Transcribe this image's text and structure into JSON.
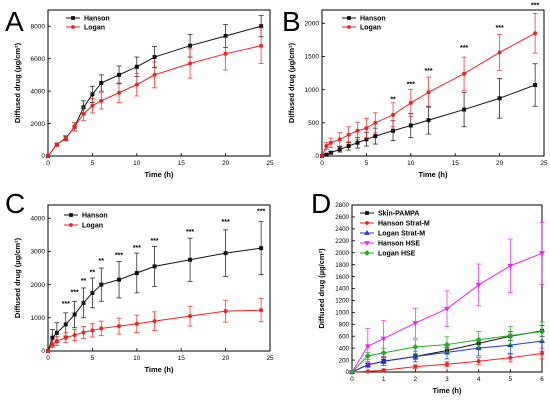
{
  "panel_labels": [
    "A",
    "B",
    "C",
    "D"
  ],
  "colors": {
    "hanson": "#111111",
    "logan": "#ee2222"
  },
  "chart_data": [
    {
      "panel": "A",
      "type": "line",
      "xlabel": "Time (h)",
      "ylabel": "Diffused drug (µg/cm²)",
      "xlim": [
        0,
        25
      ],
      "ylim": [
        0,
        9000
      ],
      "xticks": [
        0,
        5,
        10,
        15,
        20,
        25
      ],
      "yticks": [
        0,
        2000,
        4000,
        6000,
        8000
      ],
      "legend": "top-left",
      "series": [
        {
          "name": "Hanson",
          "color": "#111111",
          "marker": "square",
          "x": [
            0,
            1,
            2,
            3,
            4,
            5,
            6,
            8,
            10,
            12,
            16,
            20,
            24
          ],
          "y": [
            0,
            700,
            1100,
            1800,
            3000,
            3800,
            4500,
            5000,
            5500,
            6100,
            6800,
            7400,
            8000
          ],
          "err": [
            0,
            100,
            150,
            250,
            400,
            500,
            500,
            550,
            600,
            650,
            700,
            700,
            650
          ]
        },
        {
          "name": "Logan",
          "color": "#ee2222",
          "marker": "circle",
          "x": [
            0,
            1,
            2,
            3,
            4,
            5,
            6,
            8,
            10,
            12,
            16,
            20,
            24
          ],
          "y": [
            0,
            700,
            1100,
            1800,
            2600,
            3100,
            3400,
            3900,
            4400,
            5000,
            5700,
            6300,
            6800
          ],
          "err": [
            0,
            100,
            150,
            250,
            400,
            450,
            500,
            600,
            700,
            800,
            900,
            1000,
            1100
          ]
        }
      ]
    },
    {
      "panel": "B",
      "type": "line",
      "xlabel": "Time (h)",
      "ylabel": "Diffused drug (µg/cm²)",
      "xlim": [
        0,
        25
      ],
      "ylim": [
        0,
        2200
      ],
      "xticks": [
        0,
        5,
        10,
        15,
        20,
        25
      ],
      "yticks": [
        0,
        500,
        1000,
        1500,
        2000
      ],
      "legend": "top-left",
      "annotations": [
        {
          "x": 8,
          "y": 820,
          "text": "**"
        },
        {
          "x": 10,
          "y": 1050,
          "text": "***"
        },
        {
          "x": 12,
          "y": 1250,
          "text": "***"
        },
        {
          "x": 16,
          "y": 1600,
          "text": "***"
        },
        {
          "x": 20,
          "y": 1900,
          "text": "***"
        },
        {
          "x": 24,
          "y": 2240,
          "text": "***"
        }
      ],
      "series": [
        {
          "name": "Hanson",
          "color": "#111111",
          "marker": "square",
          "x": [
            0,
            0.5,
            1,
            2,
            3,
            4,
            5,
            6,
            8,
            10,
            12,
            16,
            20,
            24
          ],
          "y": [
            0,
            20,
            50,
            100,
            150,
            200,
            250,
            300,
            380,
            460,
            540,
            700,
            870,
            1070
          ],
          "err": [
            0,
            10,
            20,
            40,
            60,
            80,
            100,
            120,
            150,
            180,
            210,
            260,
            300,
            320
          ]
        },
        {
          "name": "Logan",
          "color": "#ee2222",
          "marker": "circle",
          "x": [
            0,
            0.5,
            1,
            2,
            3,
            4,
            5,
            6,
            8,
            10,
            12,
            16,
            20,
            24
          ],
          "y": [
            0,
            150,
            200,
            250,
            320,
            380,
            420,
            500,
            620,
            800,
            960,
            1240,
            1560,
            1850
          ],
          "err": [
            0,
            50,
            70,
            100,
            120,
            130,
            150,
            150,
            180,
            200,
            230,
            250,
            270,
            300
          ]
        }
      ]
    },
    {
      "panel": "C",
      "type": "line",
      "xlabel": "Time (h)",
      "ylabel": "Diffused drug (µg/cm²)",
      "xlim": [
        0,
        25
      ],
      "ylim": [
        0,
        4400
      ],
      "xticks": [
        0,
        5,
        10,
        15,
        20,
        25
      ],
      "yticks": [
        0,
        1000,
        2000,
        3000,
        4000
      ],
      "legend": "top-left",
      "annotations": [
        {
          "x": 2,
          "y": 1350,
          "text": "***"
        },
        {
          "x": 3,
          "y": 1700,
          "text": "***"
        },
        {
          "x": 4,
          "y": 2050,
          "text": "**"
        },
        {
          "x": 5,
          "y": 2300,
          "text": "**"
        },
        {
          "x": 6,
          "y": 2650,
          "text": "**"
        },
        {
          "x": 8,
          "y": 2820,
          "text": "***"
        },
        {
          "x": 10,
          "y": 3050,
          "text": "***"
        },
        {
          "x": 12,
          "y": 3250,
          "text": "***"
        },
        {
          "x": 16,
          "y": 3520,
          "text": "***"
        },
        {
          "x": 20,
          "y": 3820,
          "text": "***"
        },
        {
          "x": 24,
          "y": 4150,
          "text": "***"
        }
      ],
      "series": [
        {
          "name": "Hanson",
          "color": "#111111",
          "marker": "square",
          "x": [
            0,
            0.5,
            1,
            2,
            3,
            4,
            5,
            6,
            8,
            10,
            12,
            16,
            20,
            24
          ],
          "y": [
            0,
            400,
            550,
            800,
            1100,
            1450,
            1750,
            2000,
            2150,
            2350,
            2550,
            2750,
            2950,
            3100
          ],
          "err": [
            0,
            250,
            300,
            350,
            400,
            450,
            450,
            500,
            550,
            600,
            600,
            650,
            700,
            800
          ]
        },
        {
          "name": "Logan",
          "color": "#ee2222",
          "marker": "circle",
          "x": [
            0,
            0.5,
            1,
            2,
            3,
            4,
            5,
            6,
            8,
            10,
            12,
            16,
            20,
            24
          ],
          "y": [
            0,
            200,
            300,
            400,
            480,
            560,
            620,
            680,
            750,
            820,
            900,
            1050,
            1200,
            1230
          ],
          "err": [
            0,
            100,
            130,
            150,
            170,
            180,
            200,
            220,
            240,
            260,
            280,
            300,
            330,
            350
          ]
        }
      ]
    },
    {
      "panel": "D",
      "type": "line",
      "xlabel": "Time (h)",
      "ylabel": "Diffused drug (µg/cm²)",
      "xlim": [
        0,
        6
      ],
      "ylim": [
        0,
        2800
      ],
      "xticks": [
        0,
        1,
        2,
        3,
        4,
        5,
        6
      ],
      "yticks": [
        0,
        200,
        400,
        600,
        800,
        1000,
        1200,
        1400,
        1600,
        1800,
        2000,
        2200,
        2400,
        2600,
        2800
      ],
      "legend": "top-left",
      "series": [
        {
          "name": "Skin-PAMPA",
          "color": "#111111",
          "marker": "square",
          "x": [
            0,
            0.5,
            1,
            2,
            3,
            4,
            5,
            6
          ],
          "y": [
            0,
            120,
            180,
            260,
            360,
            480,
            600,
            690
          ],
          "err": [
            0,
            25,
            35,
            45,
            55,
            65,
            75,
            90
          ]
        },
        {
          "name": "Hanson Strat-M",
          "color": "#ee2222",
          "marker": "circle",
          "x": [
            0,
            0.5,
            1,
            2,
            3,
            4,
            5,
            6
          ],
          "y": [
            0,
            10,
            30,
            90,
            130,
            180,
            240,
            310
          ],
          "err": [
            0,
            10,
            20,
            30,
            40,
            60,
            70,
            90
          ]
        },
        {
          "name": "Logan Strat-M",
          "color": "#2233dd",
          "marker": "triangle-up",
          "x": [
            0,
            0.5,
            1,
            2,
            3,
            4,
            5,
            6
          ],
          "y": [
            0,
            120,
            180,
            260,
            330,
            400,
            450,
            520
          ],
          "err": [
            0,
            50,
            70,
            90,
            110,
            130,
            150,
            170
          ]
        },
        {
          "name": "Hanson HSE",
          "color": "#ee22ee",
          "marker": "triangle-down",
          "x": [
            0,
            0.5,
            1,
            2,
            3,
            4,
            5,
            6
          ],
          "y": [
            0,
            430,
            560,
            820,
            1060,
            1460,
            1780,
            1990
          ],
          "err": [
            0,
            300,
            300,
            250,
            300,
            350,
            450,
            520
          ]
        },
        {
          "name": "Logan HSE",
          "color": "#22aa22",
          "marker": "diamond",
          "x": [
            0,
            0.5,
            1,
            2,
            3,
            4,
            5,
            6
          ],
          "y": [
            0,
            270,
            320,
            420,
            460,
            540,
            610,
            680
          ],
          "err": [
            0,
            60,
            80,
            120,
            130,
            140,
            150,
            160
          ]
        }
      ]
    }
  ]
}
